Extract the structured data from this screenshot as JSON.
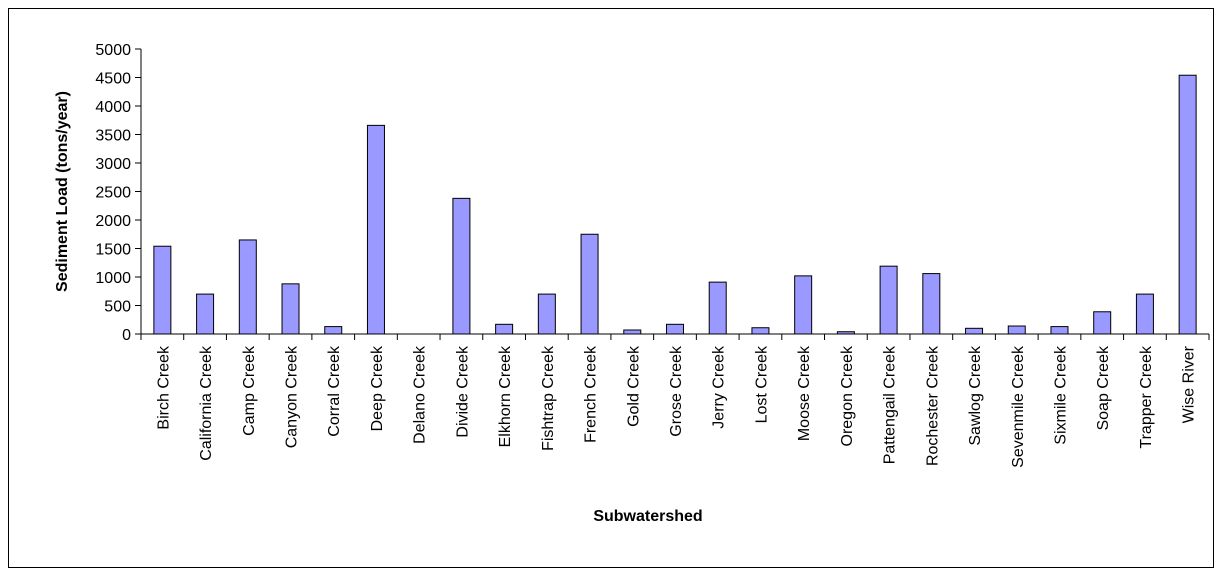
{
  "chart_data": {
    "type": "bar",
    "title": "",
    "xlabel": "Subwatershed",
    "ylabel": "Sediment Load (tons/year)",
    "ylim": [
      0,
      5000
    ],
    "yticks": [
      0,
      500,
      1000,
      1500,
      2000,
      2500,
      3000,
      3500,
      4000,
      4500,
      5000
    ],
    "grid": false,
    "legend": "none",
    "bar_color": "#9999ff",
    "categories": [
      "Birch Creek",
      "California Creek",
      "Camp Creek",
      "Canyon Creek",
      "Corral Creek",
      "Deep Creek",
      "Delano Creek",
      "Divide Creek",
      "Elkhorn Creek",
      "Fishtrap Creek",
      "French Creek",
      "Gold Creek",
      "Grose Creek",
      "Jerry Creek",
      "Lost Creek",
      "Moose Creek",
      "Oregon Creek",
      "Pattengail Creek",
      "Rochester Creek",
      "Sawlog Creek",
      "Sevenmile Creek",
      "Sixmile Creek",
      "Soap Creek",
      "Trapper Creek",
      "Wise River"
    ],
    "values": [
      1540,
      700,
      1650,
      880,
      130,
      3660,
      0,
      2380,
      170,
      700,
      1750,
      70,
      170,
      910,
      110,
      1020,
      40,
      1190,
      1060,
      100,
      140,
      130,
      390,
      700,
      4540
    ]
  }
}
